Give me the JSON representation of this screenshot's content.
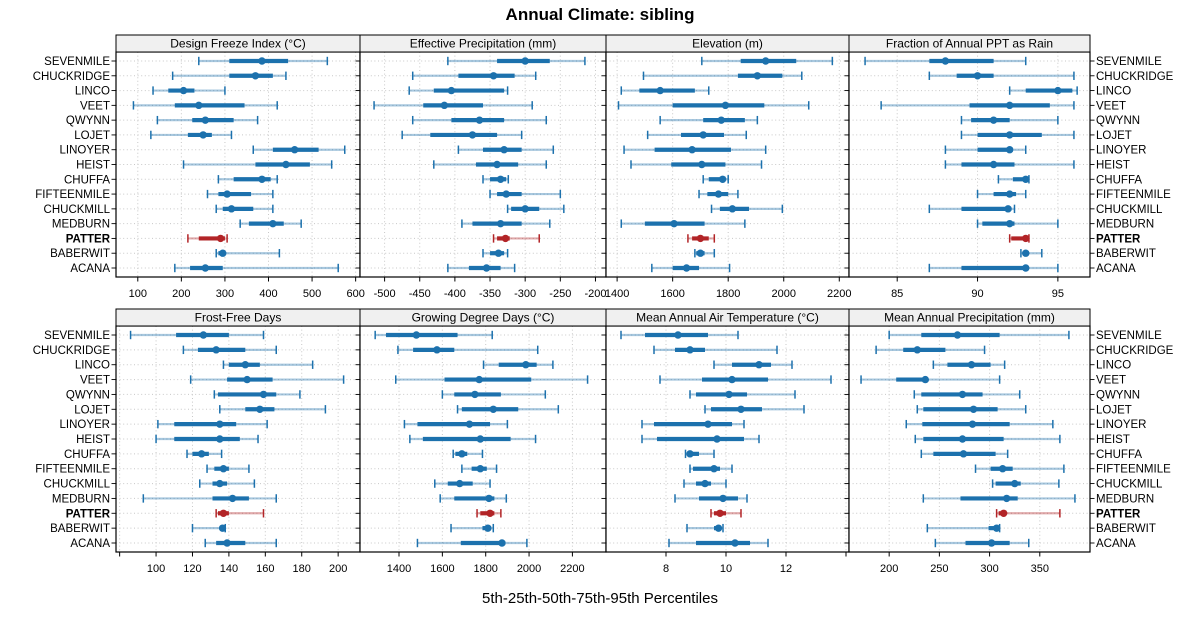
{
  "title": "Annual Climate: sibling",
  "caption": "5th-25th-50th-75th-95th Percentiles",
  "colors": {
    "series": "#1c71ad",
    "highlight": "#b22427",
    "strip_bg": "#f0f0f0",
    "panel_border": "#000000",
    "grid": "#c8c8c8",
    "text": "#000000"
  },
  "chart_data": {
    "type": "dotplot-trellis",
    "layout": "2 rows x 4 columns",
    "percentiles_shown": [
      5,
      25,
      50,
      75,
      95
    ],
    "sites": [
      "SEVENMILE",
      "CHUCKRIDGE",
      "LINCO",
      "VEET",
      "QWYNN",
      "LOJET",
      "LINOYER",
      "HEIST",
      "CHUFFA",
      "FIFTEENMILE",
      "CHUCKMILL",
      "MEDBURN",
      "PATTER",
      "BABERWIT",
      "ACANA"
    ],
    "highlight_site": "PATTER",
    "panels": [
      {
        "title": "Design Freeze Index (°C)",
        "row": 0,
        "col": 0,
        "xlim": [
          50,
          610
        ],
        "ticks": [
          100,
          200,
          300,
          400,
          500,
          600
        ],
        "extra_ticks": [],
        "values": [
          [
            240,
            310,
            385,
            445,
            535
          ],
          [
            180,
            310,
            370,
            410,
            440
          ],
          [
            135,
            170,
            205,
            230,
            300
          ],
          [
            90,
            185,
            240,
            345,
            420
          ],
          [
            145,
            225,
            255,
            320,
            375
          ],
          [
            130,
            215,
            250,
            270,
            315
          ],
          [
            365,
            410,
            460,
            515,
            575
          ],
          [
            205,
            370,
            440,
            495,
            545
          ],
          [
            285,
            320,
            385,
            405,
            420
          ],
          [
            260,
            285,
            305,
            360,
            410
          ],
          [
            280,
            295,
            315,
            365,
            410
          ],
          [
            335,
            355,
            410,
            435,
            475
          ],
          [
            215,
            240,
            290,
            300,
            305
          ],
          [
            280,
            285,
            295,
            300,
            425
          ],
          [
            185,
            220,
            255,
            295,
            560
          ]
        ]
      },
      {
        "title": "Effective Precipitation (mm)",
        "row": 0,
        "col": 1,
        "xlim": [
          -535,
          -185
        ],
        "ticks": [
          -500,
          -450,
          -400,
          -350,
          -300,
          -250,
          -200
        ],
        "extra_ticks": [],
        "values": [
          [
            -410,
            -340,
            -300,
            -265,
            -215
          ],
          [
            -460,
            -395,
            -345,
            -315,
            -285
          ],
          [
            -465,
            -430,
            -405,
            -330,
            -325
          ],
          [
            -515,
            -445,
            -415,
            -360,
            -290
          ],
          [
            -460,
            -405,
            -365,
            -330,
            -270
          ],
          [
            -475,
            -435,
            -375,
            -340,
            -305
          ],
          [
            -395,
            -360,
            -330,
            -305,
            -260
          ],
          [
            -430,
            -370,
            -340,
            -310,
            -270
          ],
          [
            -360,
            -350,
            -335,
            -327,
            -324
          ],
          [
            -350,
            -340,
            -327,
            -305,
            -250
          ],
          [
            -325,
            -320,
            -300,
            -280,
            -245
          ],
          [
            -390,
            -375,
            -335,
            -305,
            -265
          ],
          [
            -345,
            -340,
            -328,
            -322,
            -280
          ],
          [
            -360,
            -350,
            -338,
            -330,
            -325
          ],
          [
            -410,
            -380,
            -355,
            -335,
            -315
          ]
        ]
      },
      {
        "title": "Elevation (m)",
        "row": 0,
        "col": 2,
        "xlim": [
          1360,
          2235
        ],
        "ticks": [
          1400,
          1600,
          1800,
          2000,
          2200
        ],
        "extra_ticks": [],
        "values": [
          [
            1705,
            1845,
            1935,
            2045,
            2175
          ],
          [
            1495,
            1835,
            1905,
            1995,
            2065
          ],
          [
            1415,
            1480,
            1555,
            1680,
            1730
          ],
          [
            1405,
            1600,
            1790,
            1930,
            2090
          ],
          [
            1555,
            1710,
            1775,
            1860,
            1905
          ],
          [
            1510,
            1630,
            1710,
            1785,
            1865
          ],
          [
            1425,
            1535,
            1670,
            1810,
            1935
          ],
          [
            1450,
            1595,
            1705,
            1790,
            1920
          ],
          [
            1710,
            1730,
            1780,
            1790,
            1800
          ],
          [
            1695,
            1725,
            1765,
            1800,
            1835
          ],
          [
            1740,
            1770,
            1815,
            1875,
            1995
          ],
          [
            1415,
            1500,
            1605,
            1715,
            1860
          ],
          [
            1655,
            1670,
            1700,
            1730,
            1750
          ],
          [
            1680,
            1685,
            1700,
            1715,
            1750
          ],
          [
            1525,
            1600,
            1650,
            1695,
            1805
          ]
        ]
      },
      {
        "title": "Fraction of Annual PPT as Rain",
        "row": 0,
        "col": 3,
        "xlim": [
          82,
          97
        ],
        "ticks": [
          85,
          90,
          95
        ],
        "extra_ticks": [],
        "values": [
          [
            83,
            87,
            88,
            91,
            93
          ],
          [
            87,
            88.7,
            90,
            91,
            96
          ],
          [
            92,
            93,
            95,
            95.9,
            96.2
          ],
          [
            84,
            89.5,
            92,
            94.5,
            96
          ],
          [
            89,
            89.6,
            91,
            92,
            95
          ],
          [
            89,
            90,
            92,
            94,
            96
          ],
          [
            88,
            90,
            92,
            92.2,
            93
          ],
          [
            88,
            89,
            91,
            92.3,
            96
          ],
          [
            91.3,
            92.2,
            93,
            93.1,
            93.2
          ],
          [
            90,
            91,
            92,
            92.4,
            93
          ],
          [
            87,
            89,
            91.9,
            92.1,
            92.3
          ],
          [
            90,
            90.3,
            92,
            92.3,
            95
          ],
          [
            92,
            92.1,
            93,
            93.1,
            93.2
          ],
          [
            92.7,
            92.8,
            93,
            93.2,
            94
          ],
          [
            87,
            89,
            93,
            93.2,
            95
          ]
        ]
      },
      {
        "title": "Frost-Free Days",
        "row": 1,
        "col": 0,
        "xlim": [
          78,
          212
        ],
        "ticks": [
          100,
          120,
          140,
          160,
          180,
          200
        ],
        "extra_ticks": [
          80
        ],
        "values": [
          [
            86,
            111,
            126,
            140,
            159
          ],
          [
            115,
            123,
            133,
            149,
            166
          ],
          [
            137,
            140,
            149,
            157,
            186
          ],
          [
            119,
            139,
            150,
            164,
            203
          ],
          [
            132,
            134,
            159,
            166,
            179
          ],
          [
            135,
            149,
            157,
            165,
            193
          ],
          [
            101,
            110,
            135,
            144,
            161
          ],
          [
            100,
            110,
            135,
            146,
            156
          ],
          [
            117,
            120,
            125,
            129,
            136
          ],
          [
            128,
            132,
            137,
            140,
            151
          ],
          [
            124,
            131,
            135,
            139,
            154
          ],
          [
            93,
            131,
            142,
            151,
            166
          ],
          [
            133,
            134,
            137,
            140,
            159
          ],
          [
            120,
            135,
            136.5,
            137.5,
            138
          ],
          [
            127,
            133,
            139,
            149,
            166
          ]
        ]
      },
      {
        "title": "Growing Degree Days (°C)",
        "row": 1,
        "col": 1,
        "xlim": [
          1220,
          2355
        ],
        "ticks": [
          1400,
          1600,
          1800,
          2000,
          2200
        ],
        "extra_ticks": [],
        "values": [
          [
            1290,
            1340,
            1480,
            1670,
            1830
          ],
          [
            1395,
            1465,
            1575,
            1655,
            2040
          ],
          [
            1790,
            1860,
            1985,
            2035,
            2110
          ],
          [
            1385,
            1610,
            1770,
            2010,
            2270
          ],
          [
            1600,
            1655,
            1750,
            1870,
            2075
          ],
          [
            1670,
            1690,
            1835,
            1950,
            2135
          ],
          [
            1425,
            1485,
            1725,
            1820,
            1900
          ],
          [
            1450,
            1510,
            1775,
            1915,
            2030
          ],
          [
            1650,
            1660,
            1690,
            1715,
            1785
          ],
          [
            1690,
            1735,
            1775,
            1805,
            1850
          ],
          [
            1565,
            1625,
            1680,
            1740,
            1820
          ],
          [
            1590,
            1655,
            1815,
            1840,
            1895
          ],
          [
            1760,
            1775,
            1820,
            1840,
            1870
          ],
          [
            1640,
            1785,
            1810,
            1825,
            1835
          ],
          [
            1485,
            1685,
            1875,
            1890,
            1990
          ]
        ]
      },
      {
        "title": "Mean Annual Air Temperature (°C)",
        "row": 1,
        "col": 2,
        "xlim": [
          6,
          14.1
        ],
        "ticks": [
          8,
          10,
          12
        ],
        "extra_ticks": [
          14
        ],
        "values": [
          [
            6.5,
            7.3,
            8.4,
            9.4,
            10.4
          ],
          [
            7.6,
            8.3,
            8.8,
            9.3,
            11.7
          ],
          [
            9.6,
            10.2,
            11.1,
            11.5,
            12.2
          ],
          [
            7.8,
            9.2,
            10.2,
            11.4,
            13.5
          ],
          [
            8.8,
            9.0,
            10.1,
            10.7,
            12.3
          ],
          [
            9.3,
            9.5,
            10.5,
            11.2,
            12.6
          ],
          [
            7.2,
            7.6,
            9.4,
            10.2,
            10.6
          ],
          [
            7.2,
            7.7,
            9.7,
            10.6,
            11.1
          ],
          [
            8.65,
            8.7,
            8.8,
            9.1,
            9.6
          ],
          [
            8.8,
            8.9,
            9.6,
            9.8,
            10.2
          ],
          [
            8.6,
            9.0,
            9.3,
            9.5,
            10.0
          ],
          [
            8.3,
            9.1,
            9.9,
            10.4,
            10.7
          ],
          [
            9.5,
            9.6,
            9.8,
            10.0,
            10.5
          ],
          [
            8.7,
            9.6,
            9.75,
            9.85,
            9.9
          ],
          [
            8.1,
            9.0,
            10.3,
            10.8,
            11.4
          ]
        ]
      },
      {
        "title": "Mean Annual Precipitation (mm)",
        "row": 1,
        "col": 3,
        "xlim": [
          160,
          400
        ],
        "ticks": [
          200,
          250,
          300,
          350
        ],
        "extra_ticks": [],
        "values": [
          [
            200,
            232,
            268,
            310,
            379
          ],
          [
            187,
            214,
            228,
            256,
            295
          ],
          [
            244,
            258,
            282,
            301,
            315
          ],
          [
            172,
            207,
            236,
            238,
            310
          ],
          [
            225,
            232,
            273,
            293,
            330
          ],
          [
            228,
            234,
            284,
            308,
            336
          ],
          [
            217,
            233,
            283,
            320,
            363
          ],
          [
            226,
            234,
            273,
            314,
            370
          ],
          [
            232,
            244,
            274,
            306,
            318
          ],
          [
            286,
            301,
            313,
            323,
            374
          ],
          [
            303,
            306,
            325,
            331,
            369
          ],
          [
            234,
            271,
            317,
            328,
            385
          ],
          [
            307,
            309,
            314,
            316,
            370
          ],
          [
            238,
            299,
            307,
            309,
            310
          ],
          [
            246,
            276,
            302,
            320,
            339
          ]
        ]
      }
    ]
  }
}
